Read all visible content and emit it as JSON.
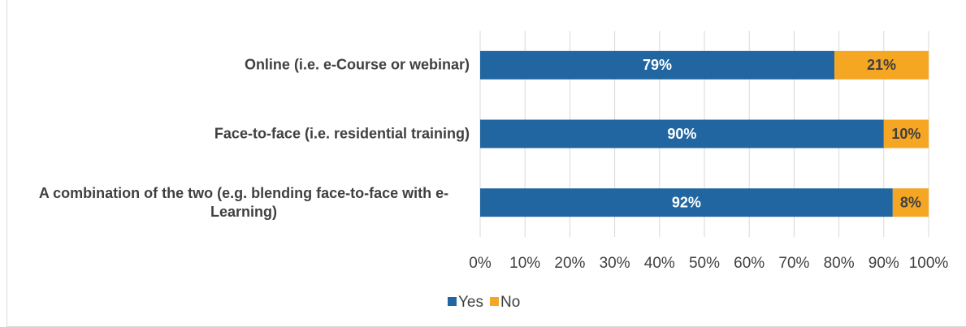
{
  "chart_data": {
    "type": "stacked-bar-horizontal",
    "categories": [
      "Online (i.e. e-Course or webinar)",
      "Face-to-face (i.e. residential training)",
      "A combination of the two (e.g. blending face-to-face with e-Learning)"
    ],
    "series": [
      {
        "name": "Yes",
        "color": "#2166a0",
        "values": [
          79,
          90,
          92
        ],
        "value_labels": [
          "79%",
          "90%",
          "92%"
        ]
      },
      {
        "name": "No",
        "color": "#f5a623",
        "values": [
          21,
          10,
          8
        ],
        "value_labels": [
          "21%",
          "10%",
          "8%"
        ]
      }
    ],
    "xlim": [
      0,
      100
    ],
    "xticks": [
      {
        "value": 0,
        "label": "0%"
      },
      {
        "value": 10,
        "label": "10%"
      },
      {
        "value": 20,
        "label": "20%"
      },
      {
        "value": 30,
        "label": "30%"
      },
      {
        "value": 40,
        "label": "40%"
      },
      {
        "value": 50,
        "label": "50%"
      },
      {
        "value": 60,
        "label": "60%"
      },
      {
        "value": 70,
        "label": "70%"
      },
      {
        "value": 80,
        "label": "80%"
      },
      {
        "value": 90,
        "label": "90%"
      },
      {
        "value": 100,
        "label": "100%"
      }
    ],
    "grid": true,
    "legend": "bottom"
  }
}
